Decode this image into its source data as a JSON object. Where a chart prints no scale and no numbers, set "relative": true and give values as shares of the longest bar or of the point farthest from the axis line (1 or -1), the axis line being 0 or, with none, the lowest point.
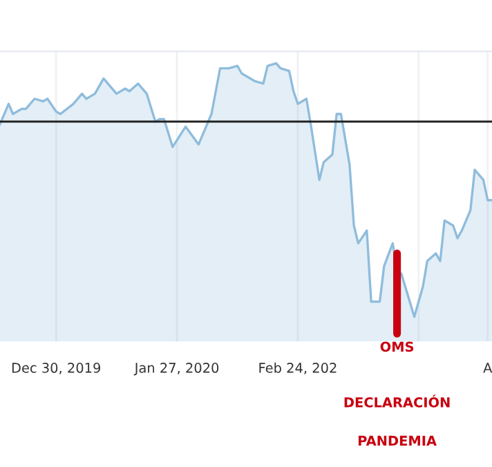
{
  "chart_data": {
    "type": "area",
    "relative": true,
    "x": [
      "2019-12-17",
      "2019-12-19",
      "2019-12-20",
      "2019-12-22",
      "2019-12-23",
      "2019-12-25",
      "2019-12-27",
      "2019-12-28",
      "2019-12-30",
      "2019-12-31",
      "2020-01-03",
      "2020-01-05",
      "2020-01-06",
      "2020-01-08",
      "2020-01-10",
      "2020-01-13",
      "2020-01-15",
      "2020-01-16",
      "2020-01-18",
      "2020-01-19",
      "2020-01-20",
      "2020-01-22",
      "2020-01-23",
      "2020-01-24",
      "2020-01-26",
      "2020-01-29",
      "2020-02-01",
      "2020-02-02",
      "2020-02-04",
      "2020-02-06",
      "2020-02-08",
      "2020-02-10",
      "2020-02-11",
      "2020-02-14",
      "2020-02-16",
      "2020-02-17",
      "2020-02-19",
      "2020-02-20",
      "2020-02-22",
      "2020-02-23",
      "2020-02-24",
      "2020-02-26",
      "2020-02-27",
      "2020-02-29",
      "2020-03-01",
      "2020-03-03",
      "2020-03-04",
      "2020-03-05",
      "2020-03-07",
      "2020-03-08",
      "2020-03-09",
      "2020-03-11",
      "2020-03-12",
      "2020-03-14",
      "2020-03-15",
      "2020-03-17",
      "2020-03-18",
      "2020-03-19",
      "2020-03-22",
      "2020-03-24",
      "2020-03-25",
      "2020-03-27",
      "2020-03-28",
      "2020-03-29",
      "2020-03-31",
      "2020-04-01",
      "2020-04-02",
      "2020-04-04",
      "2020-04-05",
      "2020-04-07",
      "2020-04-08",
      "2020-04-09"
    ],
    "series": [
      {
        "color": "#8fbcdc",
        "values": [
          0.76,
          0.84,
          0.8,
          0.82,
          0.82,
          0.86,
          0.85,
          0.86,
          0.81,
          0.8,
          0.84,
          0.88,
          0.86,
          0.88,
          0.94,
          0.88,
          0.9,
          0.89,
          0.92,
          0.9,
          0.88,
          0.77,
          0.78,
          0.78,
          0.67,
          0.75,
          0.68,
          0.72,
          0.8,
          0.98,
          0.98,
          0.99,
          0.96,
          0.93,
          0.92,
          0.99,
          1,
          0.98,
          0.97,
          0.89,
          0.84,
          0.86,
          0.76,
          0.54,
          0.61,
          0.64,
          0.8,
          0.8,
          0.6,
          0.36,
          0.29,
          0.34,
          0.06,
          0.06,
          0.2,
          0.29,
          0.18,
          0.17,
          0,
          0.12,
          0.22,
          0.25,
          0.22,
          0.38,
          0.36,
          0.31,
          0.34,
          0.42,
          0.58,
          0.54,
          0.46,
          0.46
        ]
      }
    ],
    "xlim": [
      "2019-12-17",
      "2020-04-09"
    ],
    "xticks": [
      {
        "value": "2019-12-30",
        "label": "Dec 30, 2019"
      },
      {
        "value": "2020-01-27",
        "label": "Jan 27, 2020"
      },
      {
        "value": "2020-02-24",
        "label": "Feb 24, 202"
      },
      {
        "value": "2020-03-23",
        "label": null
      },
      {
        "value": "2020-04-08",
        "label": "A"
      }
    ],
    "grid": "x",
    "ref_lines": [
      {
        "axis": "y",
        "value": 0.77,
        "color": "#222222"
      }
    ],
    "annotations": [
      {
        "text": "OMS",
        "x": "2020-03-18",
        "y": 0.25
      },
      "DECLARACIÓN",
      "PANDEMIA"
    ]
  }
}
